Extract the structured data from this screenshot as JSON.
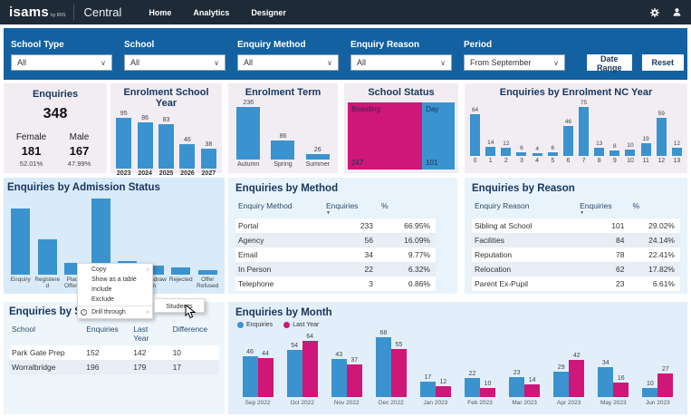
{
  "colors": {
    "bar_blue": "#3a93cf",
    "magenta": "#ce1778",
    "header_bg": "#1e2a36",
    "filter_blue": "#1361a0"
  },
  "header": {
    "logo": "isams",
    "logo_sub": "by IRIS",
    "product": "Central",
    "nav": [
      "Home",
      "Analytics",
      "Designer"
    ],
    "icons": [
      "settings-gear",
      "user-account"
    ]
  },
  "filters": {
    "items": [
      {
        "label": "School Type",
        "value": "All"
      },
      {
        "label": "School",
        "value": "All"
      },
      {
        "label": "Enquiry Method",
        "value": "All"
      },
      {
        "label": "Enquiry Reason",
        "value": "All"
      },
      {
        "label": "Period",
        "value": "From September"
      }
    ],
    "date_range_label": "Date Range",
    "reset_label": "Reset"
  },
  "enquiries_card": {
    "title": "Enquiries",
    "total": "348",
    "female_label": "Female",
    "female_value": "181",
    "female_pct": "52.01%",
    "male_label": "Male",
    "male_value": "167",
    "male_pct": "47.99%"
  },
  "chart_data": [
    {
      "id": "enrolment_school_year",
      "type": "bar",
      "title": "Enrolment School Year",
      "categories": [
        "2023",
        "2024",
        "2025",
        "2026",
        "2027"
      ],
      "values": [
        95,
        86,
        83,
        46,
        38
      ]
    },
    {
      "id": "enrolment_term",
      "type": "bar",
      "title": "Enrolment Term",
      "categories": [
        "Autumn",
        "Spring",
        "Summer"
      ],
      "values": [
        236,
        86,
        26
      ]
    },
    {
      "id": "school_status",
      "type": "treemap",
      "title": "School Status",
      "categories": [
        "Boarding",
        "Day"
      ],
      "values": [
        247,
        101
      ],
      "colors": [
        "#ce1778",
        "#3a93cf"
      ]
    },
    {
      "id": "nc_year",
      "type": "bar",
      "title": "Enquiries by Enrolment NC Year",
      "categories": [
        "0",
        "1",
        "2",
        "3",
        "4",
        "5",
        "6",
        "7",
        "8",
        "9",
        "10",
        "11",
        "12",
        "13"
      ],
      "values": [
        64,
        14,
        12,
        6,
        4,
        6,
        46,
        75,
        13,
        8,
        10,
        19,
        59,
        12
      ]
    },
    {
      "id": "admission_status",
      "type": "bar",
      "title": "Enquiries by Admission Status",
      "categories": [
        "Enquiry",
        "Registered",
        "Place Offered",
        "",
        "",
        "Withdrawn",
        "Rejected",
        "Offer Refused"
      ],
      "values": [
        82,
        44,
        15,
        94,
        17,
        11,
        9,
        6
      ],
      "value_labels": false
    },
    {
      "id": "enquiries_by_month",
      "type": "bar",
      "title": "Enquiries by Month",
      "legend": "top-left",
      "categories": [
        "Sep 2022",
        "Oct 2022",
        "Nov 2022",
        "Dec 2022",
        "Jan 2023",
        "Feb 2023",
        "Mar 2023",
        "Apr 2023",
        "May 2023",
        "Jun 2023"
      ],
      "series": [
        {
          "name": "Enquiries",
          "color": "#3a93cf",
          "values": [
            46,
            54,
            43,
            68,
            17,
            22,
            23,
            29,
            34,
            10
          ]
        },
        {
          "name": "Last Year",
          "color": "#ce1778",
          "values": [
            44,
            64,
            37,
            55,
            12,
            10,
            14,
            42,
            16,
            27
          ]
        }
      ]
    }
  ],
  "tables": {
    "method": {
      "title": "Enquiries by Method",
      "columns": [
        "Enquiry Method",
        "Enquiries",
        "%"
      ],
      "sort_col": 1,
      "rows": [
        [
          "Portal",
          "233",
          "66.95%"
        ],
        [
          "Agency",
          "56",
          "16.09%"
        ],
        [
          "Email",
          "34",
          "9.77%"
        ],
        [
          "In Person",
          "22",
          "6.32%"
        ],
        [
          "Telephone",
          "3",
          "0.86%"
        ]
      ]
    },
    "reason": {
      "title": "Enquiries by Reason",
      "columns": [
        "Enquiry Reason",
        "Enquiries",
        "%"
      ],
      "sort_col": 1,
      "rows": [
        [
          "Sibling at School",
          "101",
          "29.02%"
        ],
        [
          "Facilities",
          "84",
          "24.14%"
        ],
        [
          "Reputation",
          "78",
          "22.41%"
        ],
        [
          "Relocation",
          "62",
          "17.82%"
        ],
        [
          "Parent Ex-Pupil",
          "23",
          "6.61%"
        ]
      ]
    },
    "school": {
      "title": "Enquiries by School",
      "columns": [
        "School",
        "Enquiries",
        "Last Year",
        "Difference"
      ],
      "sort_col": null,
      "rows": [
        [
          "Park Gate Prep",
          "152",
          "142",
          "10"
        ],
        [
          "Worralbridge",
          "196",
          "179",
          "17"
        ]
      ]
    }
  },
  "context_menu": {
    "items": [
      {
        "label": "Copy",
        "arrow": true
      },
      {
        "label": "Show as a table"
      },
      {
        "label": "Include"
      },
      {
        "label": "Exclude"
      },
      {
        "label": "Drill through",
        "arrow": true,
        "icon": "drill-through-icon",
        "separator_before": true
      }
    ],
    "submenu": {
      "label": "Students"
    }
  }
}
